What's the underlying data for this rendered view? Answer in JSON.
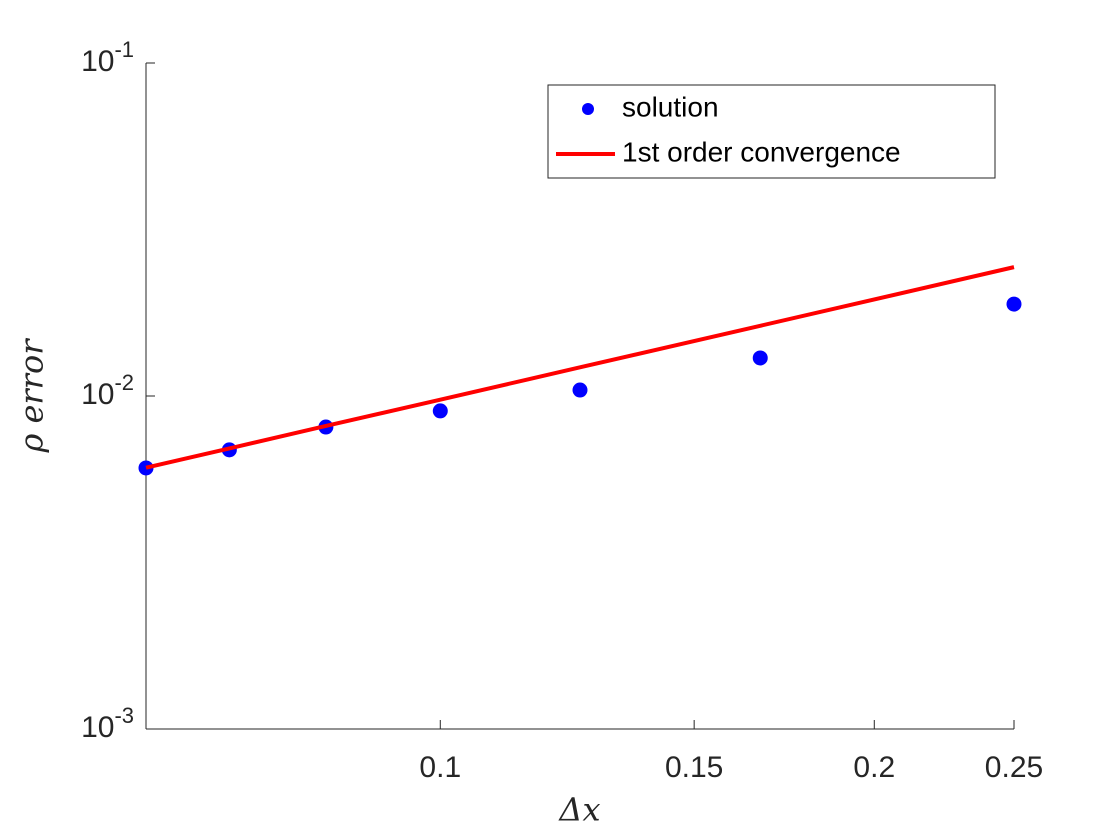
{
  "chart_data": {
    "type": "line",
    "x": [
      0.0625,
      0.0714,
      0.0833,
      0.1,
      0.125,
      0.1667,
      0.25
    ],
    "series": [
      {
        "name": "solution",
        "color": "#0000ff",
        "style": "markers",
        "values": [
          0.00608,
          0.00689,
          0.00807,
          0.00902,
          0.01042,
          0.01301,
          0.01888
        ]
      },
      {
        "name": "1st order convergence",
        "color": "#ff0000",
        "style": "line",
        "values": [
          0.00609,
          0.00696,
          0.00813,
          0.00975,
          0.01219,
          0.01625,
          0.02438
        ]
      }
    ],
    "xlabel": "Δx",
    "ylabel": "ρ error",
    "xlim": [
      0.0625,
      0.25
    ],
    "ylim": [
      0.001,
      0.1
    ],
    "xscale": "log",
    "yscale": "log",
    "xticks": [
      0.1,
      0.15,
      0.2,
      0.25
    ],
    "yticks": [
      {
        "value": 0.001,
        "label": "10",
        "exponent": "-3"
      },
      {
        "value": 0.01,
        "label": "10",
        "exponent": "-2"
      },
      {
        "value": 0.1,
        "label": "10",
        "exponent": "-1"
      }
    ],
    "legend": "upper right"
  }
}
